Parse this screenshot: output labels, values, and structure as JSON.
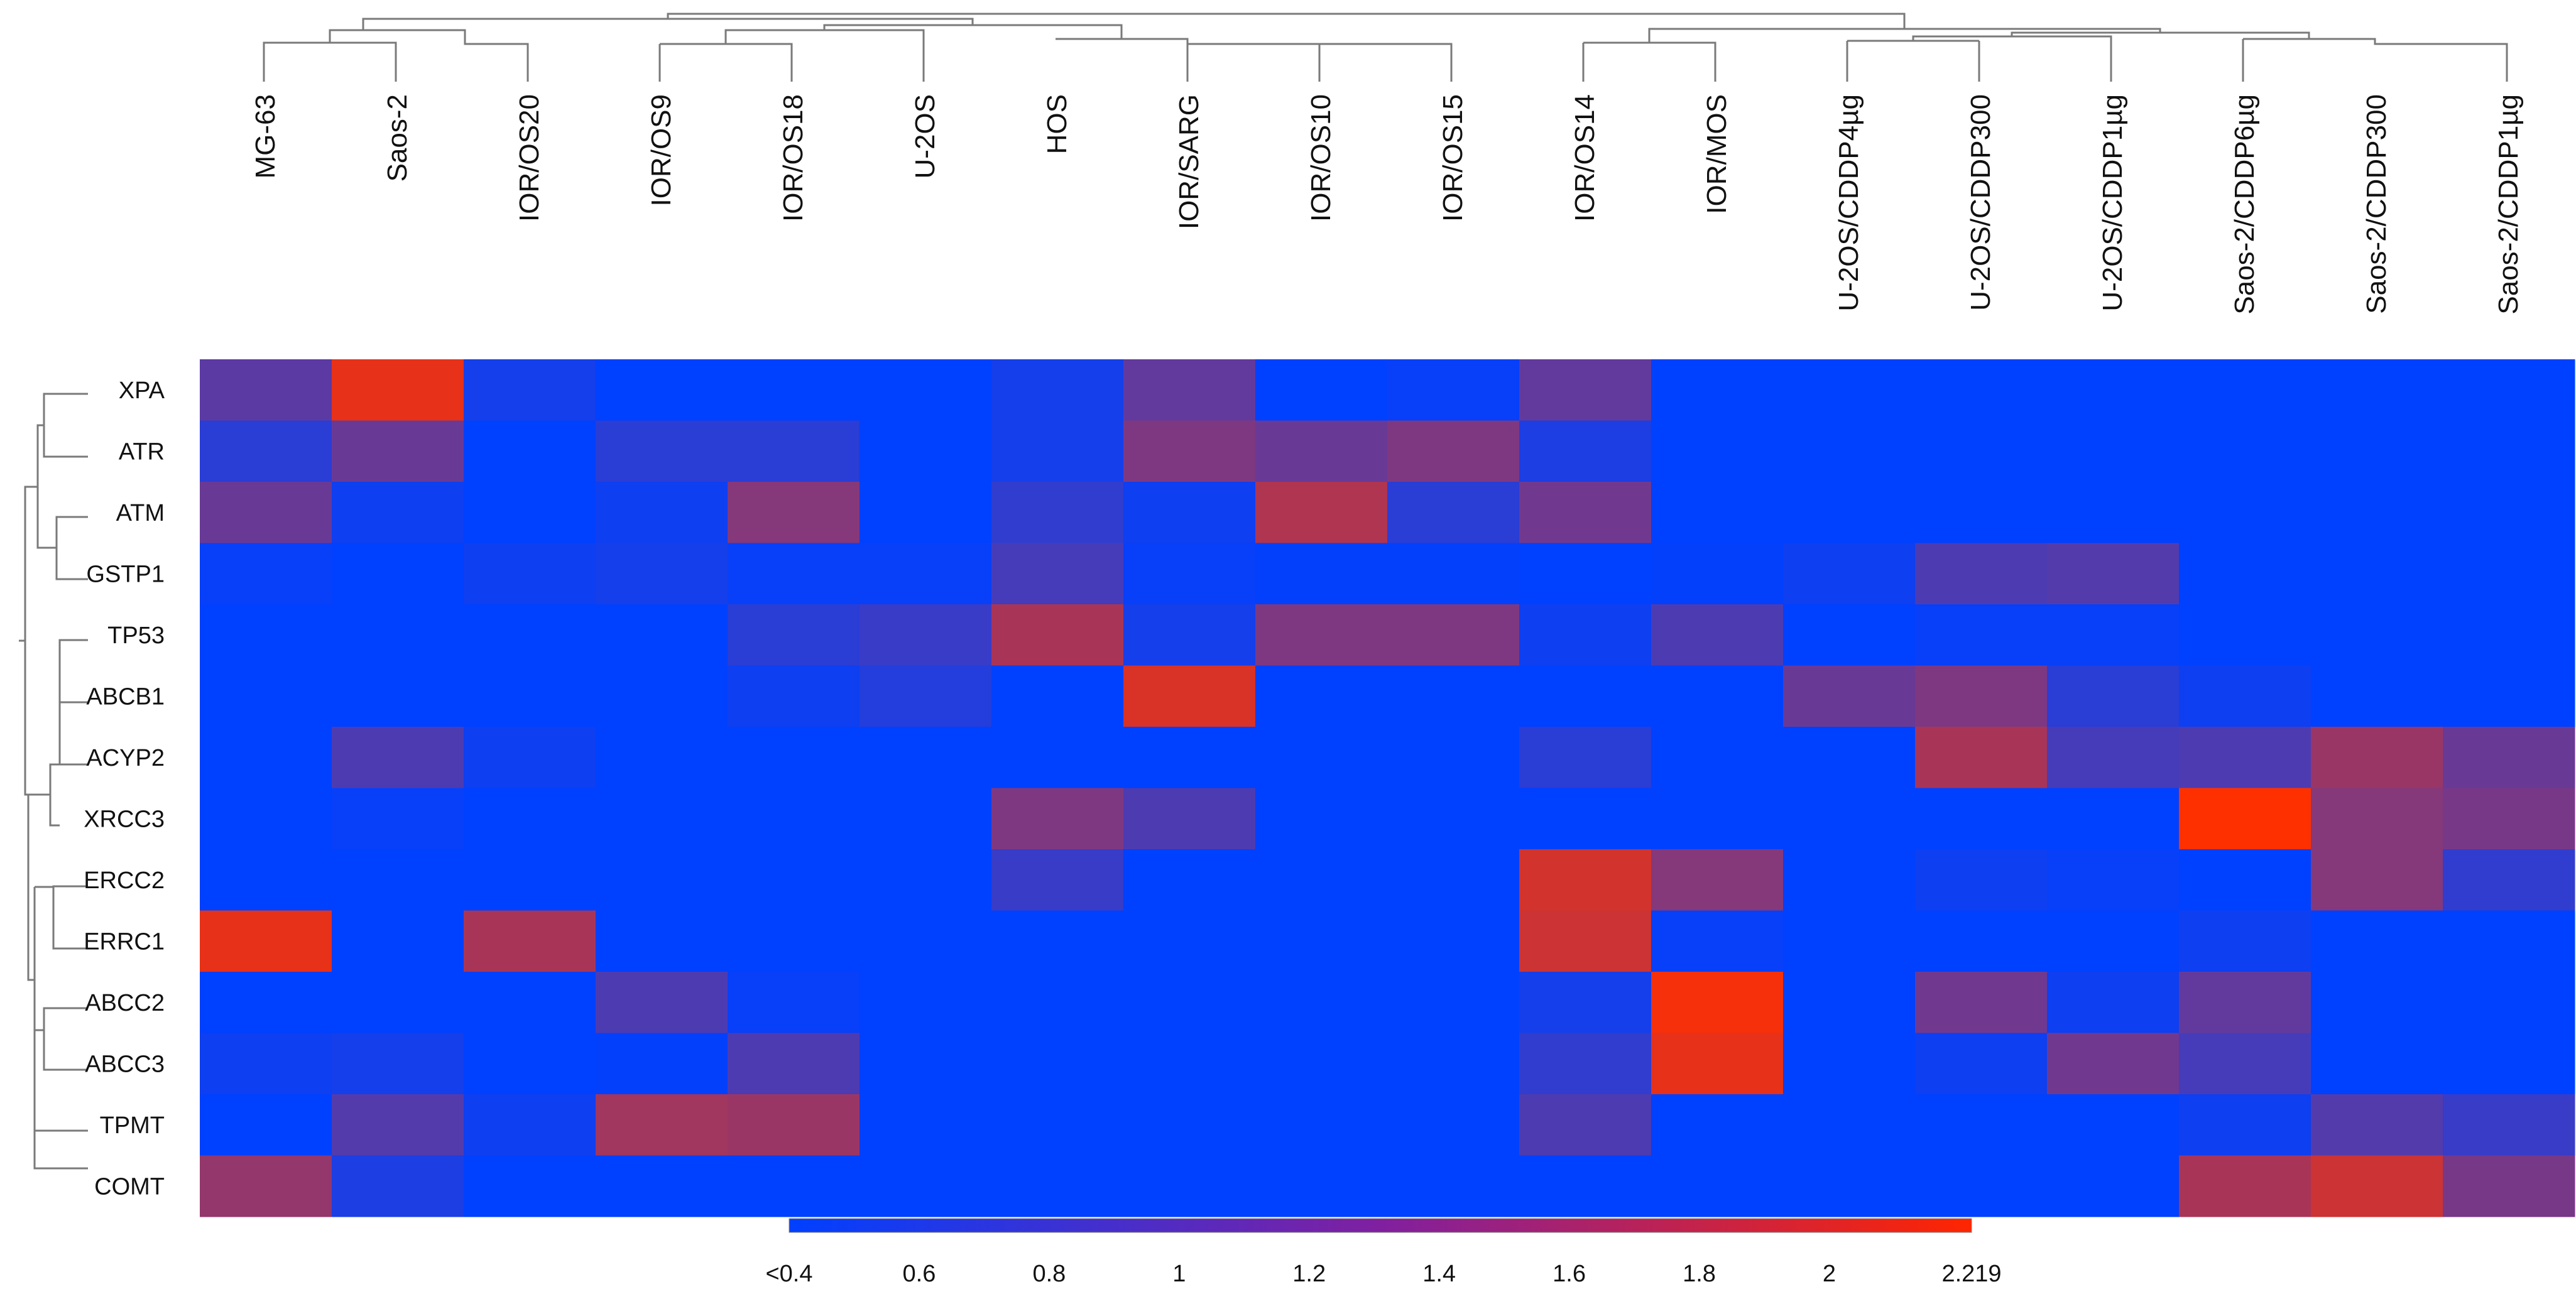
{
  "chart_data": {
    "type": "heatmap",
    "title": "",
    "xlabel": "",
    "ylabel": "",
    "x_categories": [
      "MG-63",
      "Saos-2",
      "IOR/OS20",
      "IOR/OS9",
      "IOR/OS18",
      "U-2OS",
      "HOS",
      "IOR/SARG",
      "IOR/OS10",
      "IOR/OS15",
      "IOR/OS14",
      "IOR/MOS",
      "U-2OS/CDDP4µg",
      "U-2OS/CDDP300",
      "U-2OS/CDDP1µg",
      "Saos-2/CDDP6µg",
      "Saos-2/CDDP300",
      "Saos-2/CDDP1µg"
    ],
    "y_categories": [
      "XPA",
      "ATR",
      "ATM",
      "GSTP1",
      "TP53",
      "ABCB1",
      "ACYP2",
      "XRCC3",
      "ERCC2",
      "ERRC1",
      "ABCC2",
      "ABCC3",
      "TPMT",
      "COMT"
    ],
    "values": [
      [
        1.05,
        2.05,
        0.55,
        0.4,
        0.4,
        0.4,
        0.55,
        1.1,
        0.4,
        0.45,
        1.1,
        0.4,
        0.4,
        0.4,
        0.4,
        0.4,
        0.4,
        0.4
      ],
      [
        0.7,
        1.15,
        0.4,
        0.7,
        0.7,
        0.4,
        0.55,
        1.3,
        1.15,
        1.3,
        0.6,
        0.4,
        0.4,
        0.4,
        0.4,
        0.4,
        0.4,
        0.4
      ],
      [
        1.15,
        0.5,
        0.4,
        0.5,
        1.35,
        0.4,
        0.75,
        0.5,
        1.65,
        0.7,
        1.2,
        0.4,
        0.4,
        0.4,
        0.4,
        0.4,
        0.4,
        0.4
      ],
      [
        0.45,
        0.4,
        0.5,
        0.55,
        0.45,
        0.45,
        0.9,
        0.45,
        0.42,
        0.42,
        0.4,
        0.42,
        0.5,
        0.95,
        1.0,
        0.4,
        0.4,
        0.4
      ],
      [
        0.4,
        0.4,
        0.4,
        0.4,
        0.7,
        0.8,
        1.6,
        0.55,
        1.3,
        1.3,
        0.5,
        0.95,
        0.4,
        0.45,
        0.45,
        0.4,
        0.4,
        0.4
      ],
      [
        0.4,
        0.4,
        0.4,
        0.4,
        0.5,
        0.65,
        0.4,
        1.95,
        0.4,
        0.4,
        0.4,
        0.4,
        1.15,
        1.3,
        0.7,
        0.5,
        0.4,
        0.4
      ],
      [
        0.4,
        0.95,
        0.5,
        0.4,
        0.4,
        0.4,
        0.4,
        0.4,
        0.4,
        0.4,
        0.7,
        0.4,
        0.4,
        1.6,
        0.9,
        0.95,
        1.5,
        1.15
      ],
      [
        0.4,
        0.45,
        0.4,
        0.4,
        0.4,
        0.4,
        1.3,
        0.95,
        0.4,
        0.4,
        0.4,
        0.4,
        0.4,
        0.4,
        0.4,
        2.219,
        1.35,
        1.25
      ],
      [
        0.4,
        0.4,
        0.4,
        0.4,
        0.4,
        0.4,
        0.8,
        0.4,
        0.4,
        0.4,
        1.9,
        1.35,
        0.4,
        0.5,
        0.45,
        0.4,
        1.35,
        0.75
      ],
      [
        2.05,
        0.4,
        1.6,
        0.4,
        0.4,
        0.4,
        0.4,
        0.4,
        0.4,
        0.4,
        1.85,
        0.45,
        0.4,
        0.4,
        0.4,
        0.5,
        0.4,
        0.4
      ],
      [
        0.4,
        0.4,
        0.4,
        0.95,
        0.45,
        0.4,
        0.4,
        0.4,
        0.4,
        0.4,
        0.55,
        2.15,
        0.4,
        1.2,
        0.5,
        1.1,
        0.4,
        0.4
      ],
      [
        0.5,
        0.55,
        0.4,
        0.42,
        0.95,
        0.4,
        0.4,
        0.4,
        0.4,
        0.4,
        0.75,
        2.05,
        0.4,
        0.5,
        1.2,
        0.9,
        0.4,
        0.4
      ],
      [
        0.4,
        1.0,
        0.5,
        1.55,
        1.5,
        0.4,
        0.4,
        0.4,
        0.4,
        0.4,
        0.95,
        0.4,
        0.4,
        0.4,
        0.4,
        0.5,
        1.0,
        0.8
      ],
      [
        1.45,
        0.6,
        0.4,
        0.4,
        0.4,
        0.4,
        0.4,
        0.4,
        0.4,
        0.4,
        0.4,
        0.4,
        0.4,
        0.4,
        0.4,
        1.6,
        1.85,
        1.25
      ]
    ],
    "color_scale": {
      "min": 0.4,
      "max": 2.219,
      "min_color": "#0040ff",
      "max_color": "#ff2500",
      "tick_labels": [
        "<0.4",
        "0.6",
        "0.8",
        "1",
        "1.2",
        "1.4",
        "1.6",
        "1.8",
        "2",
        "2.219"
      ],
      "tick_values": [
        0.4,
        0.6,
        0.8,
        1.0,
        1.2,
        1.4,
        1.6,
        1.8,
        2.0,
        2.219
      ]
    },
    "legend_placement": "bottom",
    "grid": false,
    "row_dendrogram": "left",
    "column_dendrogram": "top"
  }
}
